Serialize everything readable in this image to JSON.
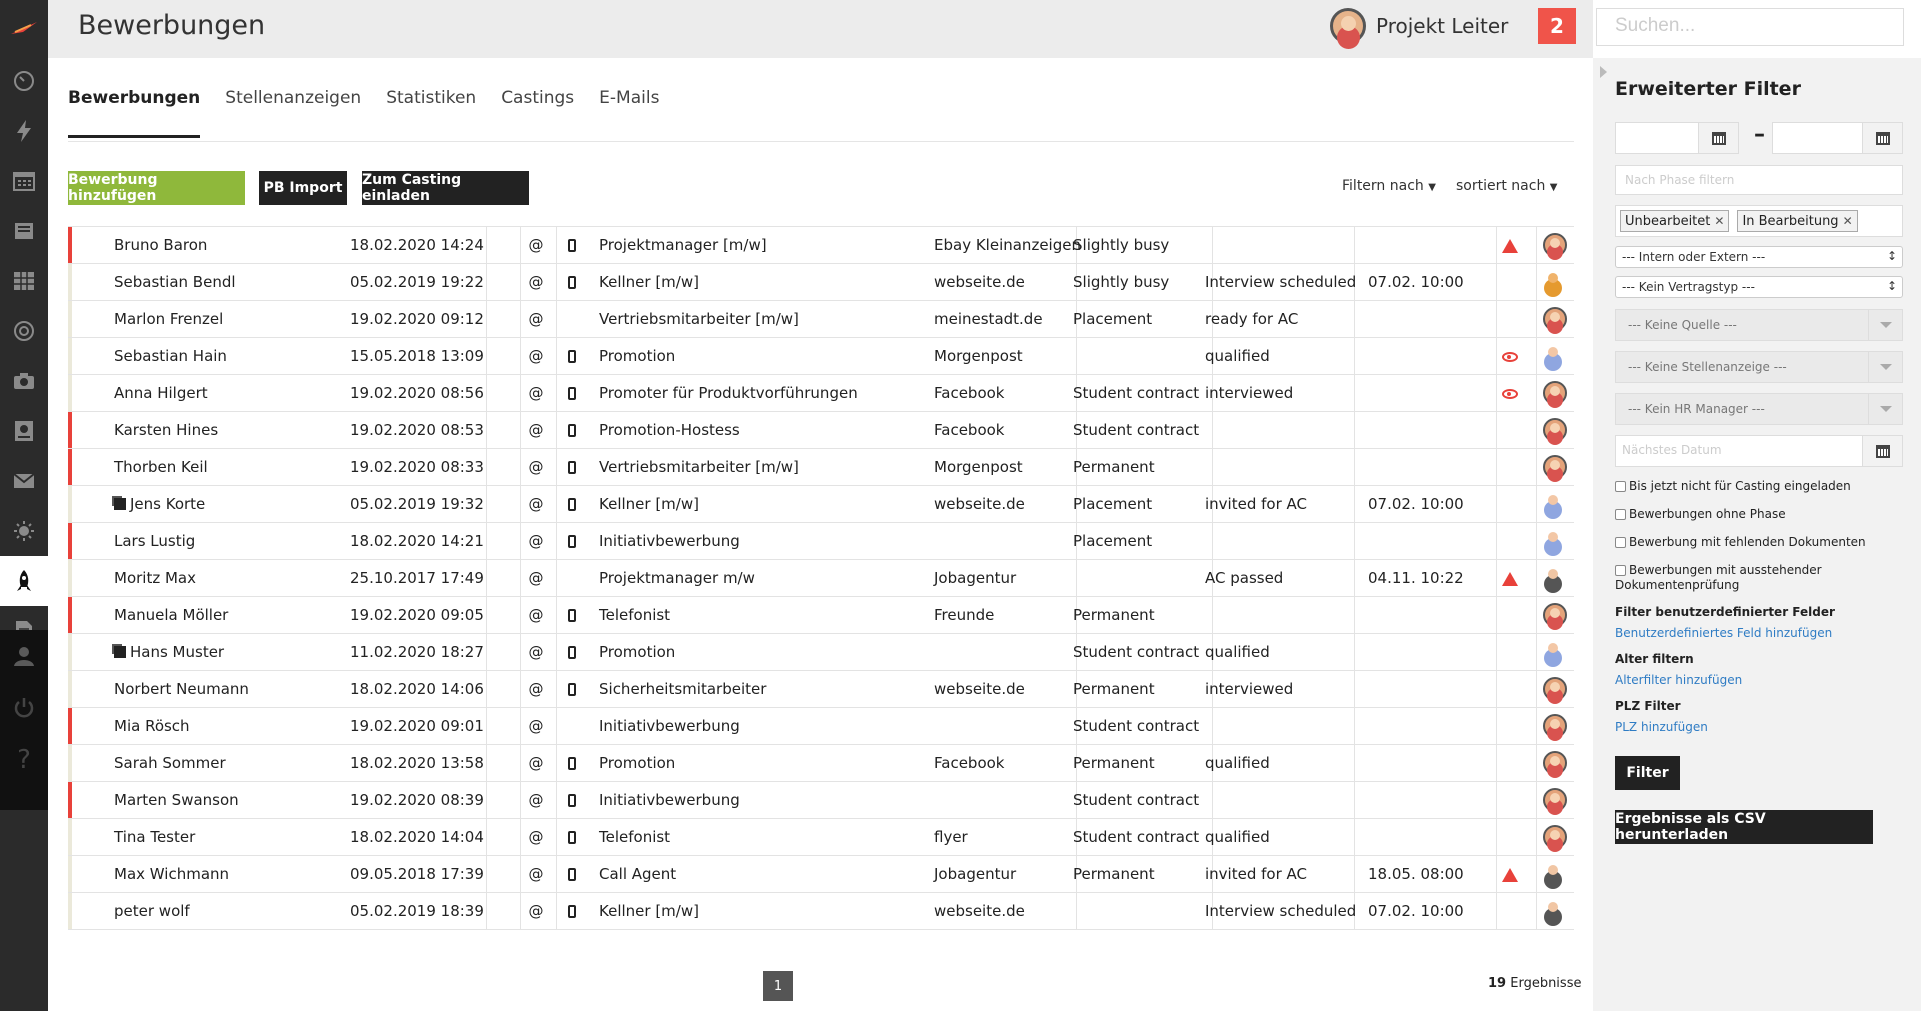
{
  "app": {
    "title": "Bewerbungen"
  },
  "header": {
    "user_name": "Projekt Leiter",
    "notifications": "2",
    "search_placeholder": "Suchen..."
  },
  "sidebar": {
    "items": [
      "dashboard-icon",
      "lightning-icon",
      "calendar-icon",
      "book-icon",
      "table-icon",
      "target-icon",
      "camera-icon",
      "certificate-icon",
      "mail-icon",
      "sun-icon",
      "rocket-icon",
      "document-icon",
      "user-icon",
      "power-icon",
      "help-icon"
    ],
    "active": "rocket-icon"
  },
  "tabs": [
    {
      "label": "Bewerbungen",
      "active": true
    },
    {
      "label": "Stellenanzeigen",
      "active": false
    },
    {
      "label": "Statistiken",
      "active": false
    },
    {
      "label": "Castings",
      "active": false
    },
    {
      "label": "E-Mails",
      "active": false
    }
  ],
  "actions": {
    "add": "Bewerbung hinzufügen",
    "import": "PB Import",
    "invite": "Zum Casting einladen",
    "filter_by": "Filtern nach",
    "sort_by": "sortiert nach"
  },
  "colors": {
    "accent_green": "#8fb83b",
    "mark_red": "#e8413a",
    "mark_neutral": "#ebe9da",
    "link_blue": "#2f7cc4"
  },
  "rows": [
    {
      "name": "Bruno Baron",
      "date": "18.02.2020 14:24",
      "at": "@",
      "phone": true,
      "job": "Projektmanager [m/w]",
      "source": "Ebay Kleinanzeigen",
      "contract": "Slightly busy",
      "phase": "",
      "next": "",
      "icon": "warning",
      "avatar": "female",
      "mark": "red",
      "doc": false
    },
    {
      "name": "Sebastian Bendl",
      "date": "05.02.2019 19:22",
      "at": "@",
      "phone": true,
      "job": "Kellner [m/w]",
      "source": "webseite.de",
      "contract": "Slightly busy",
      "phase": "Interview scheduled",
      "next": "07.02. 10:00",
      "icon": "",
      "avatar": "orange",
      "mark": "neutral",
      "doc": false
    },
    {
      "name": "Marlon Frenzel",
      "date": "19.02.2020 09:12",
      "at": "@",
      "phone": false,
      "job": "Vertriebsmitarbeiter [m/w]",
      "source": "meinestadt.de",
      "contract": "Placement",
      "phase": "ready for AC",
      "next": "",
      "icon": "",
      "avatar": "female",
      "mark": "neutral",
      "doc": false
    },
    {
      "name": "Sebastian Hain",
      "date": "15.05.2018 13:09",
      "at": "@",
      "phone": true,
      "job": "Promotion",
      "source": "Morgenpost",
      "contract": "",
      "phase": "qualified",
      "next": "",
      "icon": "eye",
      "avatar": "light",
      "mark": "neutral",
      "doc": false
    },
    {
      "name": "Anna Hilgert",
      "date": "19.02.2020 08:56",
      "at": "@",
      "phone": true,
      "job": "Promoter für Produktvorführungen",
      "source": "Facebook",
      "contract": "Student contract",
      "phase": "interviewed",
      "next": "",
      "icon": "eye",
      "avatar": "female",
      "mark": "neutral",
      "doc": false
    },
    {
      "name": "Karsten Hines",
      "date": "19.02.2020 08:53",
      "at": "@",
      "phone": true,
      "job": "Promotion-Hostess",
      "source": "Facebook",
      "contract": "Student contract",
      "phase": "",
      "next": "",
      "icon": "",
      "avatar": "female",
      "mark": "red",
      "doc": false
    },
    {
      "name": "Thorben Keil",
      "date": "19.02.2020 08:33",
      "at": "@",
      "phone": true,
      "job": "Vertriebsmitarbeiter [m/w]",
      "source": "Morgenpost",
      "contract": "Permanent",
      "phase": "",
      "next": "",
      "icon": "",
      "avatar": "female",
      "mark": "red",
      "doc": false
    },
    {
      "name": "Jens Korte",
      "date": "05.02.2019 19:32",
      "at": "@",
      "phone": true,
      "job": "Kellner [m/w]",
      "source": "webseite.de",
      "contract": "Placement",
      "phase": "invited for AC",
      "next": "07.02. 10:00",
      "icon": "",
      "avatar": "light",
      "mark": "neutral",
      "doc": true
    },
    {
      "name": "Lars Lustig",
      "date": "18.02.2020 14:21",
      "at": "@",
      "phone": true,
      "job": "Initiativbewerbung",
      "source": "",
      "contract": "Placement",
      "phase": "",
      "next": "",
      "icon": "",
      "avatar": "light",
      "mark": "red",
      "doc": false
    },
    {
      "name": "Moritz Max",
      "date": "25.10.2017 17:49",
      "at": "@",
      "phone": false,
      "job": "Projektmanager m/w",
      "source": "Jobagentur",
      "contract": "",
      "phase": "AC passed",
      "next": "04.11. 10:22",
      "icon": "warning",
      "avatar": "grey",
      "mark": "neutral",
      "doc": false
    },
    {
      "name": "Manuela Möller",
      "date": "19.02.2020 09:05",
      "at": "@",
      "phone": true,
      "job": "Telefonist",
      "source": "Freunde",
      "contract": "Permanent",
      "phase": "",
      "next": "",
      "icon": "",
      "avatar": "female",
      "mark": "red",
      "doc": false
    },
    {
      "name": "Hans Muster",
      "date": "11.02.2020 18:27",
      "at": "@",
      "phone": true,
      "job": "Promotion",
      "source": "",
      "contract": "Student contract",
      "phase": "qualified",
      "next": "",
      "icon": "",
      "avatar": "light",
      "mark": "neutral",
      "doc": true
    },
    {
      "name": "Norbert Neumann",
      "date": "18.02.2020 14:06",
      "at": "@",
      "phone": true,
      "job": "Sicherheitsmitarbeiter",
      "source": "webseite.de",
      "contract": "Permanent",
      "phase": "interviewed",
      "next": "",
      "icon": "",
      "avatar": "female",
      "mark": "neutral",
      "doc": false
    },
    {
      "name": "Mia Rösch",
      "date": "19.02.2020 09:01",
      "at": "@",
      "phone": false,
      "job": "Initiativbewerbung",
      "source": "",
      "contract": "Student contract",
      "phase": "",
      "next": "",
      "icon": "",
      "avatar": "female",
      "mark": "red",
      "doc": false
    },
    {
      "name": "Sarah Sommer",
      "date": "18.02.2020 13:58",
      "at": "@",
      "phone": true,
      "job": "Promotion",
      "source": "Facebook",
      "contract": "Permanent",
      "phase": "qualified",
      "next": "",
      "icon": "",
      "avatar": "female",
      "mark": "neutral",
      "doc": false
    },
    {
      "name": "Marten Swanson",
      "date": "19.02.2020 08:39",
      "at": "@",
      "phone": true,
      "job": "Initiativbewerbung",
      "source": "",
      "contract": "Student contract",
      "phase": "",
      "next": "",
      "icon": "",
      "avatar": "female",
      "mark": "red",
      "doc": false
    },
    {
      "name": "Tina Tester",
      "date": "18.02.2020 14:04",
      "at": "@",
      "phone": true,
      "job": "Telefonist",
      "source": "flyer",
      "contract": "Student contract",
      "phase": "qualified",
      "next": "",
      "icon": "",
      "avatar": "female",
      "mark": "neutral",
      "doc": false
    },
    {
      "name": "Max Wichmann",
      "date": "09.05.2018 17:39",
      "at": "@",
      "phone": true,
      "job": "Call Agent",
      "source": "Jobagentur",
      "contract": "Permanent",
      "phase": "invited for AC",
      "next": "18.05. 08:00",
      "icon": "warning",
      "avatar": "grey",
      "mark": "neutral",
      "doc": false
    },
    {
      "name": "peter wolf",
      "date": "05.02.2019 18:39",
      "at": "@",
      "phone": true,
      "job": "Kellner [m/w]",
      "source": "webseite.de",
      "contract": "",
      "phase": "Interview scheduled",
      "next": "07.02. 10:00",
      "icon": "",
      "avatar": "grey",
      "mark": "neutral",
      "doc": false
    }
  ],
  "pagination": {
    "current": "1",
    "results_count": "19",
    "results_label": "Ergebnisse"
  },
  "filter_panel": {
    "title": "Erweiterter Filter",
    "phase_placeholder": "Nach Phase filtern",
    "tags": [
      "Unbearbeitet",
      "In Bearbeitung"
    ],
    "intern_extern": "--- Intern oder Extern ---",
    "vertragstyp": "--- Kein Vertragstyp ---",
    "quelle": "--- Keine Quelle ---",
    "stellenanzeige": "--- Keine Stellenanzeige ---",
    "hr_manager": "--- Kein HR Manager ---",
    "next_date_placeholder": "Nächstes Datum",
    "checkboxes": [
      "Bis jetzt nicht für Casting eingeladen",
      "Bewerbungen ohne Phase",
      "Bewerbung mit fehlenden Dokumenten",
      "Bewerbungen mit ausstehender Dokumentenprüfung"
    ],
    "custom_fields_head": "Filter benutzerdefinierter Felder",
    "custom_fields_link": "Benutzerdefiniertes Feld hinzufügen",
    "age_head": "Alter filtern",
    "age_link": "Alterfilter hinzufügen",
    "plz_head": "PLZ Filter",
    "plz_link": "PLZ hinzufügen",
    "filter_button": "Filter",
    "csv_button": "Ergebnisse als CSV herunterladen"
  }
}
